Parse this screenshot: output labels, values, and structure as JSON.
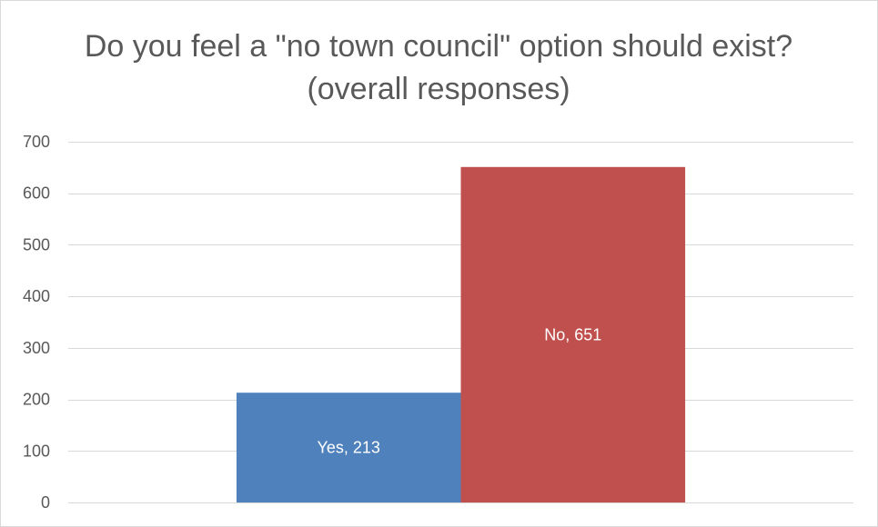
{
  "chart_data": {
    "type": "bar",
    "title_lines": [
      "Do you feel a \"no town council\" option should exist?",
      "(overall responses)"
    ],
    "series": [
      {
        "name": "Yes",
        "values": [
          213
        ],
        "color": "#4F81BD"
      },
      {
        "name": "No",
        "values": [
          651
        ],
        "color": "#C0504D"
      }
    ],
    "ylim": [
      0,
      700
    ],
    "y_ticks": [
      0,
      100,
      200,
      300,
      400,
      500,
      600,
      700
    ],
    "grid": true,
    "legend": "none",
    "xlabel": "",
    "ylabel": "",
    "text_color": "#595959",
    "gridline_color": "#D9D9D9",
    "data_label_color": "#FFFFFF"
  }
}
